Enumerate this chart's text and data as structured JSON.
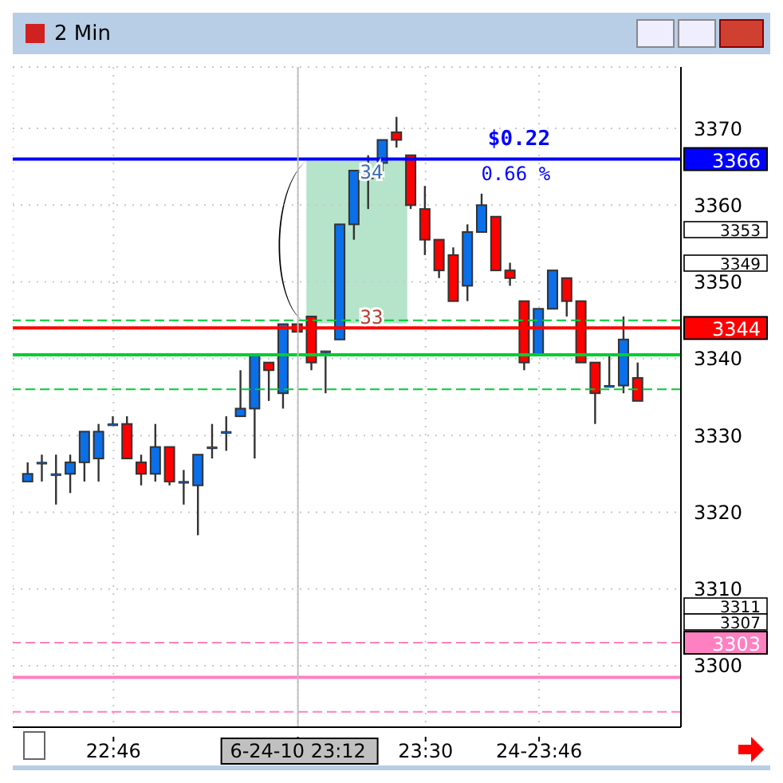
{
  "chart_data": {
    "type": "candlestick",
    "title": "2 Min",
    "x": [
      22.5667,
      22.6,
      22.6333,
      22.6667,
      22.7,
      22.7333,
      22.7667,
      22.8,
      22.8333,
      22.8667,
      22.9,
      22.9333,
      22.9667,
      23,
      23.0333,
      23.0667,
      23.1,
      23.1333,
      23.1667,
      23.2,
      23.2333,
      23.2667,
      23.3,
      23.3333,
      23.3667,
      23.4,
      23.4333,
      23.4667,
      23.5,
      23.5333,
      23.5667,
      23.6,
      23.6333,
      23.6667,
      23.7,
      23.7333,
      23.7667,
      23.8,
      23.8333,
      23.8667,
      23.9,
      23.9333,
      23.9667,
      24
    ],
    "xlim": [
      22.53,
      24.1
    ],
    "xticks": [
      {
        "value": 22.7667,
        "label": "22:46"
      },
      {
        "value": 23.2,
        "label": "6-24-10 23:12"
      },
      {
        "value": 23.5,
        "label": "23:30"
      },
      {
        "value": 23.7667,
        "label": "24-23:46"
      }
    ],
    "ohlc": [
      [
        3324,
        3326.5,
        3324,
        3325
      ],
      [
        3326.5,
        3327.5,
        3324,
        3326.5
      ],
      [
        3325,
        3327.5,
        3321,
        3325
      ],
      [
        3325,
        3327.5,
        3322.5,
        3326.5
      ],
      [
        3326.5,
        3330.5,
        3324,
        3330.5
      ],
      [
        3327,
        3331.5,
        3324,
        3330.5
      ],
      [
        3331.5,
        3332.5,
        3331.5,
        3331.5
      ],
      [
        3331.5,
        3332.5,
        3327,
        3327
      ],
      [
        3326.5,
        3327.5,
        3323.5,
        3325
      ],
      [
        3325,
        3331.5,
        3324,
        3328.5
      ],
      [
        3328.5,
        3328.5,
        3323.5,
        3324
      ],
      [
        3324,
        3325.5,
        3321,
        3324
      ],
      [
        3323.5,
        3327.5,
        3317,
        3327.5
      ],
      [
        3328.5,
        3331.5,
        3327,
        3328.5
      ],
      [
        3330.5,
        3332.5,
        3328,
        3330.5
      ],
      [
        3332.5,
        3338.5,
        3332.5,
        3333.5
      ],
      [
        3333.5,
        3340.5,
        3327,
        3340.5
      ],
      [
        3339.5,
        3339.5,
        3334.5,
        3338.5
      ],
      [
        3335.5,
        3344.5,
        3333.5,
        3344.5
      ],
      [
        3344.5,
        3344.5,
        3343.5,
        3343.5
      ],
      [
        3345.5,
        3345.5,
        3338.5,
        3339.5
      ],
      [
        3341,
        3341,
        3335.5,
        3341
      ],
      [
        3342.5,
        3357.5,
        3342.5,
        3357.5
      ],
      [
        3357.5,
        3364.5,
        3355.5,
        3364.5
      ],
      [
        3363.5,
        3366.5,
        3359.5,
        3364.5
      ],
      [
        3365.5,
        3368.5,
        3363.5,
        3368.5
      ],
      [
        3369.5,
        3371.5,
        3367.5,
        3368.5
      ],
      [
        3366.5,
        3366.5,
        3359.5,
        3360
      ],
      [
        3359.5,
        3362.5,
        3353.5,
        3355.5
      ],
      [
        3355.5,
        3355.5,
        3350.5,
        3351.5
      ],
      [
        3353.5,
        3354.5,
        3347.5,
        3347.5
      ],
      [
        3349.5,
        3357.5,
        3347.5,
        3356.5
      ],
      [
        3356.5,
        3361.5,
        3356.5,
        3360
      ],
      [
        3358.5,
        3358.5,
        3351.5,
        3351.5
      ],
      [
        3351.5,
        3352.5,
        3349.5,
        3350.5
      ],
      [
        3347.5,
        3347.5,
        3338.5,
        3339.5
      ],
      [
        3340.5,
        3346.5,
        3340.5,
        3346.5
      ],
      [
        3346.5,
        3351.5,
        3346.5,
        3351.5
      ],
      [
        3350.5,
        3350.5,
        3345.5,
        3347.5
      ],
      [
        3347.5,
        3347.5,
        3339.5,
        3339.5
      ],
      [
        3339.5,
        3339.5,
        3331.5,
        3335.5
      ],
      [
        3336.5,
        3340.5,
        3336.5,
        3336.5
      ],
      [
        3336.5,
        3345.5,
        3335.5,
        3342.5
      ],
      [
        3337.5,
        3339.5,
        3334.5,
        3334.5
      ]
    ],
    "colors": [
      "#0a6fe8",
      "#0a6fe8",
      "#0a6fe8",
      "#0a6fe8",
      "#0a6fe8",
      "#0a6fe8",
      "#0a6fe8",
      "#ff0000",
      "#ff0000",
      "#0a6fe8",
      "#ff0000",
      "#0a6fe8",
      "#0a6fe8",
      "#0a6fe8",
      "#0a6fe8",
      "#0a6fe8",
      "#0a6fe8",
      "#ff0000",
      "#0a6fe8",
      "#ff0000",
      "#ff0000",
      "#0a6fe8",
      "#0a6fe8",
      "#0a6fe8",
      "#0a6fe8",
      "#0a6fe8",
      "#ff0000",
      "#ff0000",
      "#ff0000",
      "#ff0000",
      "#ff0000",
      "#0a6fe8",
      "#0a6fe8",
      "#ff0000",
      "#ff0000",
      "#ff0000",
      "#0a6fe8",
      "#0a6fe8",
      "#ff0000",
      "#ff0000",
      "#ff0000",
      "#0a6fe8",
      "#0a6fe8",
      "#ff0000"
    ],
    "ylim": [
      3292,
      3378
    ],
    "yticks": [
      3300,
      3310,
      3320,
      3330,
      3340,
      3350,
      3360,
      3370
    ],
    "grid": true,
    "ref_lines": [
      {
        "axis": "y",
        "value": 3366,
        "label": "3366",
        "color": "#0000ff",
        "line_style": "solid"
      },
      {
        "axis": "y",
        "value": 3345,
        "label": null,
        "color": "#00cc33",
        "line_style": "dashed"
      },
      {
        "axis": "y",
        "value": 3344,
        "label": "3344",
        "color": "#ff0000",
        "line_style": "solid"
      },
      {
        "axis": "y",
        "value": 3340.5,
        "label": null,
        "color": "#00cc33",
        "line_style": "solid"
      },
      {
        "axis": "y",
        "value": 3336,
        "label": null,
        "color": "#00cc33",
        "line_style": "dashed"
      },
      {
        "axis": "y",
        "value": 3303,
        "label": "3303",
        "color": "#ff80c0",
        "line_style": "dashed"
      },
      {
        "axis": "y",
        "value": 3298.5,
        "label": null,
        "color": "#ff80c0",
        "line_style": "solid"
      },
      {
        "axis": "y",
        "value": 3294,
        "label": null,
        "color": "#ff80c0",
        "line_style": "dashed"
      },
      {
        "axis": "x",
        "value": 23.2,
        "label": null,
        "color": "#c0c0c0",
        "line_style": "solid"
      }
    ],
    "annotations": [
      "3353",
      "3349",
      "3311",
      "3307",
      "$0.22",
      "0.66 %",
      "34",
      "33"
    ]
  }
}
